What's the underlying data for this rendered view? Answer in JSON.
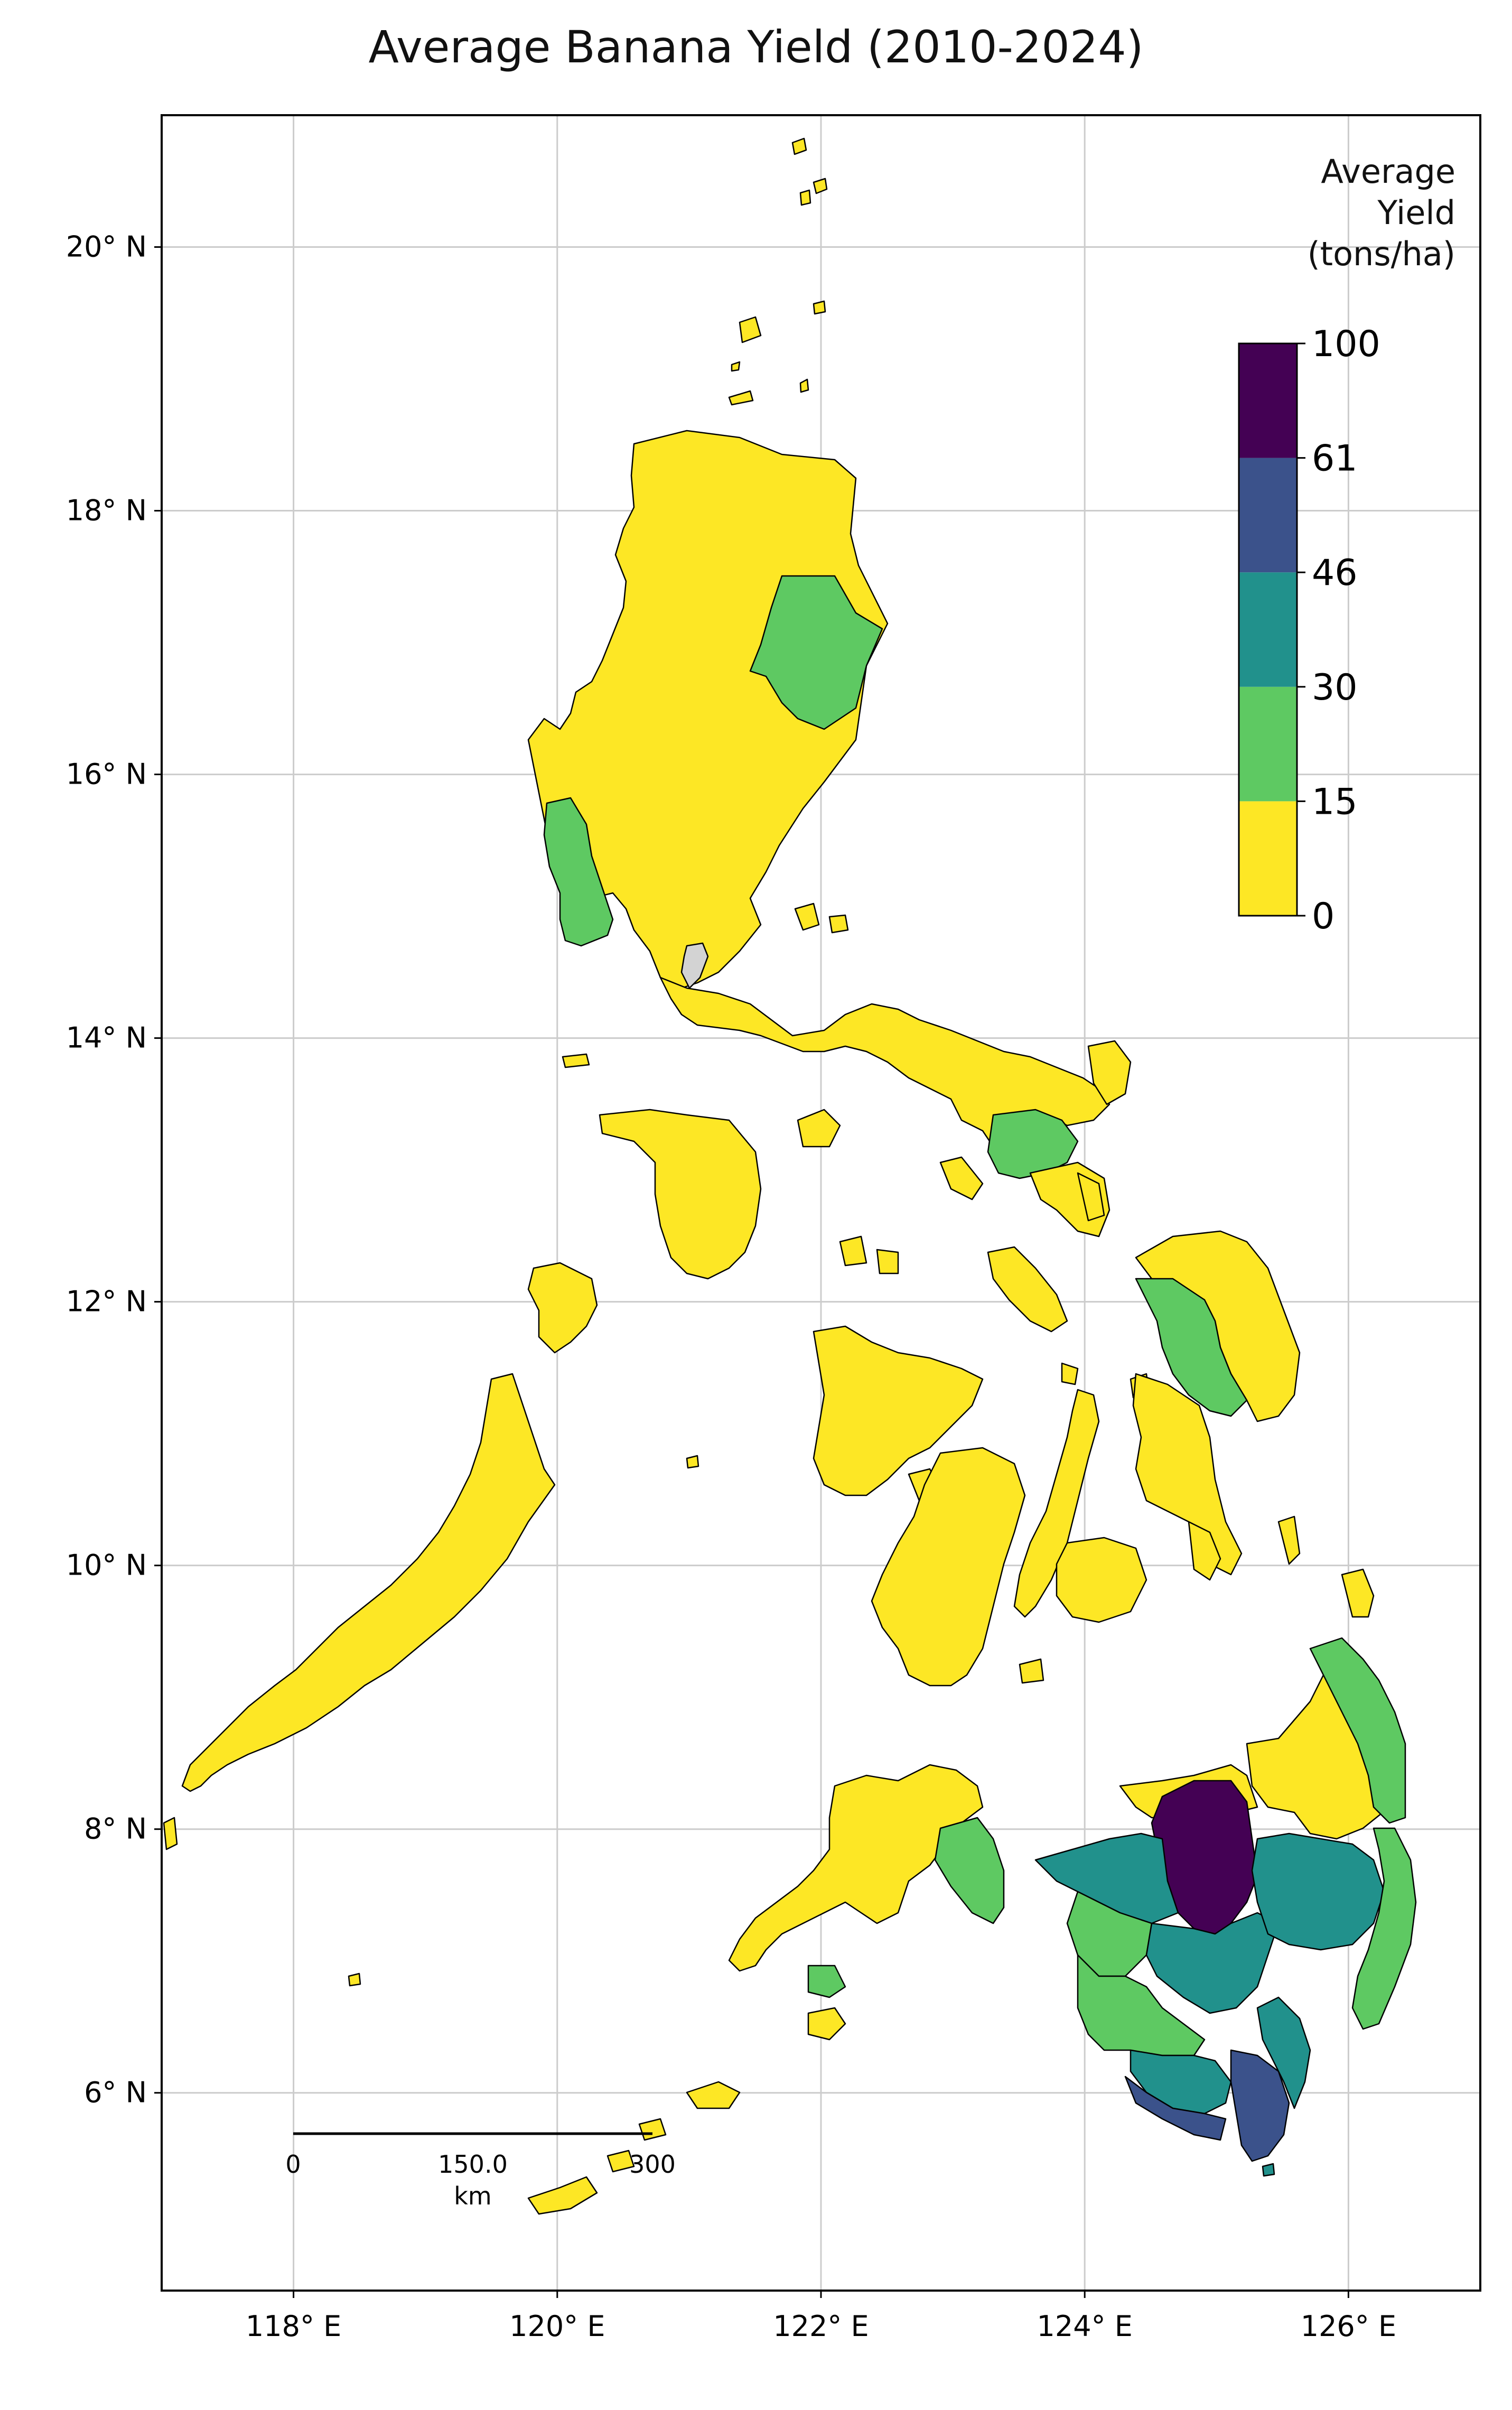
{
  "title": "Average Banana Yield (2010-2024)",
  "legend": {
    "title": "Average\nYield\n(tons/ha)",
    "ticks": [
      "0",
      "15",
      "30",
      "46",
      "61",
      "100"
    ],
    "bins": [
      {
        "from": 0,
        "to": 15,
        "color": "#fde725"
      },
      {
        "from": 15,
        "to": 30,
        "color": "#5ec962"
      },
      {
        "from": 30,
        "to": 46,
        "color": "#21918c"
      },
      {
        "from": 46,
        "to": 61,
        "color": "#3b528b"
      },
      {
        "from": 61,
        "to": 100,
        "color": "#440154"
      }
    ]
  },
  "axes": {
    "x_ticks": [
      "118° E",
      "120° E",
      "122° E",
      "124° E",
      "126° E"
    ],
    "y_ticks": [
      "20° N",
      "18° N",
      "16° N",
      "14° N",
      "12° N",
      "10° N",
      "8° N",
      "6° N"
    ],
    "lon_range": [
      117.0,
      127.0
    ],
    "lat_range": [
      4.5,
      21.0
    ],
    "grid": true
  },
  "scalebar": {
    "labels": [
      "0",
      "150.0",
      "300"
    ],
    "unit": "km"
  },
  "colors": {
    "no_data": "#d3d3d3",
    "border": "#000000",
    "grid": "#cccccc"
  }
}
